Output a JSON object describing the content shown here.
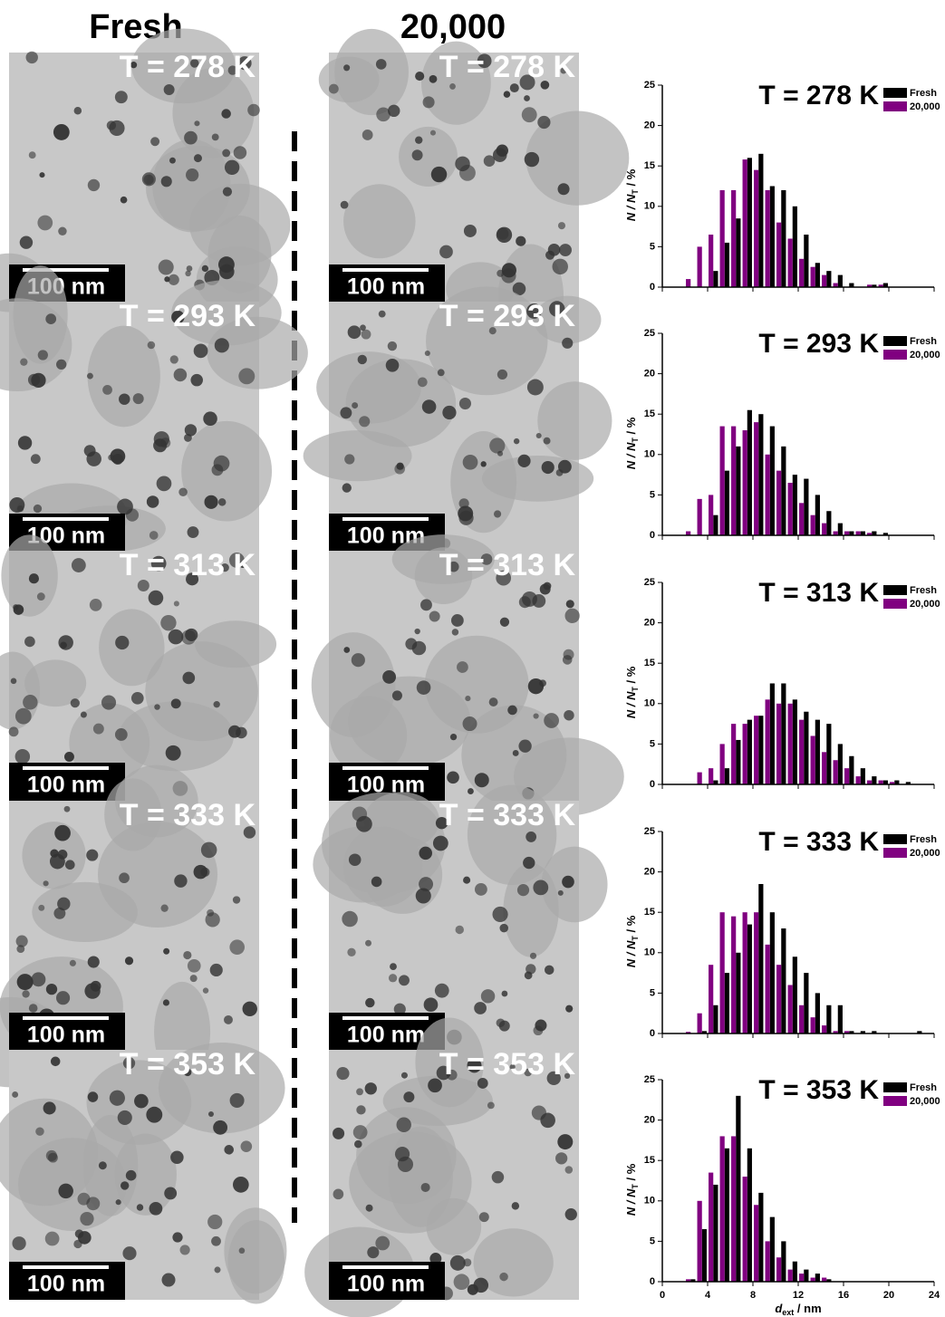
{
  "tem": {
    "columns": [
      "Fresh",
      "20,000"
    ],
    "panels": [
      {
        "label": "T = 278 K",
        "scale": "100 nm"
      },
      {
        "label": "T = 278 K",
        "scale": "100 nm"
      },
      {
        "label": "T = 293 K",
        "scale": "100 nm"
      },
      {
        "label": "T = 293 K",
        "scale": "100 nm"
      },
      {
        "label": "T = 313 K",
        "scale": "100 nm"
      },
      {
        "label": "T = 313 K",
        "scale": "100 nm"
      },
      {
        "label": "T = 333 K",
        "scale": "100 nm"
      },
      {
        "label": "T = 333 K",
        "scale": "100 nm"
      },
      {
        "label": "T = 353 K",
        "scale": "100 nm"
      },
      {
        "label": "T = 353 K",
        "scale": "100 nm"
      }
    ]
  },
  "chart_data": [
    {
      "type": "bar",
      "title": "T = 278 K",
      "ylabel": {
        "text": "N / N",
        "sub": "T",
        "tail": " / %"
      },
      "x": [
        2.5,
        3.5,
        4.5,
        5.5,
        6.5,
        7.5,
        8.5,
        9.5,
        10.5,
        11.5,
        12.5,
        13.5,
        14.5,
        15.5,
        16.5,
        17.5,
        18.5,
        19.5,
        20.5,
        21.5,
        22.5
      ],
      "series": [
        {
          "name": "Fresh",
          "color": "#000000",
          "values": [
            0,
            0,
            2,
            5.5,
            8.5,
            16,
            16.5,
            12.5,
            12,
            10,
            6.5,
            3,
            2,
            1.5,
            0.5,
            0,
            0.3,
            0.5,
            0,
            0,
            0
          ]
        },
        {
          "name": "20,000",
          "color": "#800080",
          "values": [
            1,
            5,
            6.5,
            12,
            12,
            15.8,
            14.5,
            12,
            8,
            6,
            3.5,
            2.5,
            1.5,
            0.5,
            0,
            0,
            0.3,
            0.3,
            0,
            0,
            0
          ]
        }
      ],
      "xlim": [
        0,
        24
      ],
      "xticks": [
        0,
        4,
        8,
        12,
        16,
        20,
        24
      ],
      "ylim": [
        0,
        25
      ],
      "yticks": [
        0,
        5,
        10,
        15,
        20,
        25
      ],
      "xtick_labels": false
    },
    {
      "type": "bar",
      "title": "T = 293 K",
      "ylabel": {
        "text": "N / N",
        "sub": "T",
        "tail": " / %"
      },
      "x": [
        2.5,
        3.5,
        4.5,
        5.5,
        6.5,
        7.5,
        8.5,
        9.5,
        10.5,
        11.5,
        12.5,
        13.5,
        14.5,
        15.5,
        16.5,
        17.5,
        18.5,
        19.5,
        20.5,
        21.5,
        22.5
      ],
      "series": [
        {
          "name": "Fresh",
          "color": "#000000",
          "values": [
            0,
            0,
            2.5,
            8,
            11,
            15.5,
            15,
            13.5,
            11,
            7.5,
            7,
            5,
            3,
            1.5,
            0.5,
            0.5,
            0.5,
            0.3,
            0,
            0,
            0
          ]
        },
        {
          "name": "20,000",
          "color": "#800080",
          "values": [
            0.5,
            4.5,
            5,
            13.5,
            13.5,
            13,
            14,
            10,
            8,
            6.5,
            4,
            2.5,
            1.5,
            0.5,
            0.5,
            0.5,
            0.3,
            0,
            0,
            0,
            0
          ]
        }
      ],
      "xlim": [
        0,
        24
      ],
      "xticks": [
        0,
        4,
        8,
        12,
        16,
        20,
        24
      ],
      "ylim": [
        0,
        25
      ],
      "yticks": [
        0,
        5,
        10,
        15,
        20,
        25
      ],
      "xtick_labels": false
    },
    {
      "type": "bar",
      "title": "T = 313 K",
      "ylabel": {
        "text": "N / N",
        "sub": "T",
        "tail": " / %"
      },
      "x": [
        2.5,
        3.5,
        4.5,
        5.5,
        6.5,
        7.5,
        8.5,
        9.5,
        10.5,
        11.5,
        12.5,
        13.5,
        14.5,
        15.5,
        16.5,
        17.5,
        18.5,
        19.5,
        20.5,
        21.5,
        22.5
      ],
      "series": [
        {
          "name": "Fresh",
          "color": "#000000",
          "values": [
            0,
            0,
            0.5,
            2,
            5.5,
            8,
            8.5,
            12.5,
            12.5,
            10.5,
            9,
            8,
            7.5,
            5,
            3.5,
            2,
            1,
            0.5,
            0.5,
            0.3,
            0
          ]
        },
        {
          "name": "20,000",
          "color": "#800080",
          "values": [
            0,
            1.5,
            2,
            5,
            7.5,
            7.5,
            8.5,
            10.5,
            10,
            10,
            8,
            6,
            4,
            3,
            2,
            1,
            0.5,
            0.5,
            0.3,
            0,
            0
          ]
        }
      ],
      "xlim": [
        0,
        24
      ],
      "xticks": [
        0,
        4,
        8,
        12,
        16,
        20,
        24
      ],
      "ylim": [
        0,
        25
      ],
      "yticks": [
        0,
        5,
        10,
        15,
        20,
        25
      ],
      "xtick_labels": false
    },
    {
      "type": "bar",
      "title": "T = 333 K",
      "ylabel": {
        "text": "N / N",
        "sub": "T",
        "tail": " / %"
      },
      "x": [
        2.5,
        3.5,
        4.5,
        5.5,
        6.5,
        7.5,
        8.5,
        9.5,
        10.5,
        11.5,
        12.5,
        13.5,
        14.5,
        15.5,
        16.5,
        17.5,
        18.5,
        19.5,
        20.5,
        21.5,
        22.5
      ],
      "series": [
        {
          "name": "Fresh",
          "color": "#000000",
          "values": [
            0,
            0.3,
            3.5,
            7.5,
            10,
            13.5,
            18.5,
            15,
            13,
            9.5,
            7.5,
            5,
            3.5,
            3.5,
            0.3,
            0.3,
            0.3,
            0,
            0,
            0,
            0.3
          ]
        },
        {
          "name": "20,000",
          "color": "#800080",
          "values": [
            0.2,
            2.5,
            8.5,
            15,
            14.5,
            15,
            15,
            11,
            8.5,
            6,
            3.5,
            2,
            1,
            0.3,
            0.3,
            0,
            0,
            0,
            0,
            0,
            0
          ]
        }
      ],
      "xlim": [
        0,
        24
      ],
      "xticks": [
        0,
        4,
        8,
        12,
        16,
        20,
        24
      ],
      "ylim": [
        0,
        25
      ],
      "yticks": [
        0,
        5,
        10,
        15,
        20,
        25
      ],
      "xtick_labels": false
    },
    {
      "type": "bar",
      "title": "T = 353 K",
      "ylabel": {
        "text": "N / N",
        "sub": "T",
        "tail": " / %"
      },
      "xlabel": {
        "text": "d",
        "sub": "ext",
        "tail": " / nm"
      },
      "x": [
        2.5,
        3.5,
        4.5,
        5.5,
        6.5,
        7.5,
        8.5,
        9.5,
        10.5,
        11.5,
        12.5,
        13.5,
        14.5,
        15.5,
        16.5,
        17.5,
        18.5,
        19.5,
        20.5,
        21.5,
        22.5
      ],
      "series": [
        {
          "name": "Fresh",
          "color": "#000000",
          "values": [
            0.3,
            6.5,
            12,
            16.5,
            23,
            16.5,
            11,
            8,
            5,
            2.5,
            1.5,
            1,
            0.3,
            0,
            0,
            0,
            0,
            0,
            0,
            0,
            0
          ]
        },
        {
          "name": "20,000",
          "color": "#800080",
          "values": [
            0.3,
            10,
            13.5,
            18,
            18,
            13,
            9.5,
            5,
            3,
            1.5,
            1,
            0.5,
            0.5,
            0,
            0,
            0,
            0,
            0,
            0,
            0,
            0
          ]
        }
      ],
      "xlim": [
        0,
        24
      ],
      "xticks": [
        0,
        4,
        8,
        12,
        16,
        20,
        24
      ],
      "ylim": [
        0,
        25
      ],
      "yticks": [
        0,
        5,
        10,
        15,
        20,
        25
      ],
      "xtick_labels": true
    }
  ]
}
